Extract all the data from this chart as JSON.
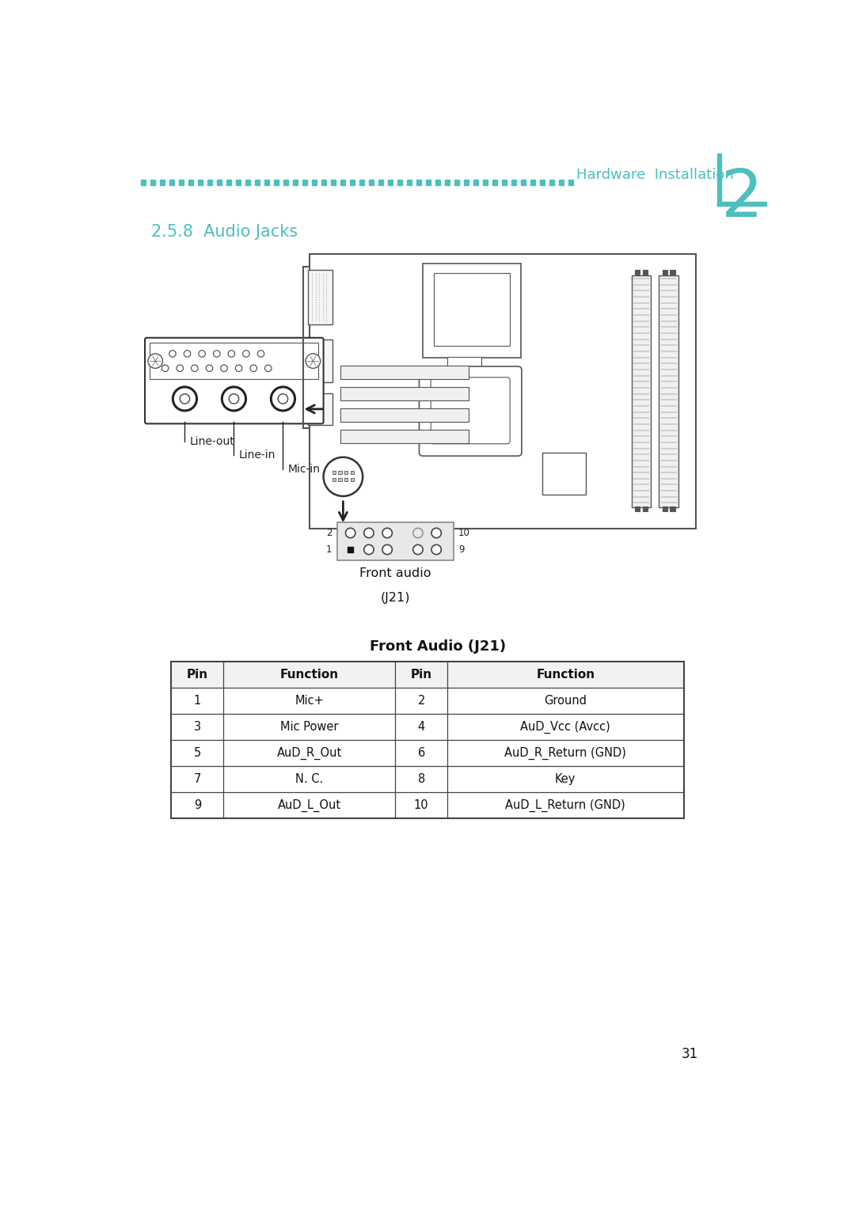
{
  "page_bg": "#ffffff",
  "teal_color": "#4dbfbf",
  "dark_color": "#1a1a1a",
  "header_text": "Hardware  Installation",
  "chapter_num": "2",
  "section_title": "2.5.8  Audio Jacks",
  "table_title": "Front Audio (J21)",
  "connector_label_line1": "Front audio",
  "connector_label_line2": "(J21)",
  "labels": [
    "Line-out",
    "Line-in",
    "Mic-in"
  ],
  "table_headers": [
    "Pin",
    "Function",
    "Pin",
    "Function"
  ],
  "table_data": [
    [
      "1",
      "Mic+",
      "2",
      "Ground"
    ],
    [
      "3",
      "Mic Power",
      "4",
      "AuD_Vcc (Avcc)"
    ],
    [
      "5",
      "AuD_R_Out",
      "6",
      "AuD_R_Return (GND)"
    ],
    [
      "7",
      "N. C.",
      "8",
      "Key"
    ],
    [
      "9",
      "AuD_L_Out",
      "10",
      "AuD_L_Return (GND)"
    ]
  ],
  "page_number": "31"
}
